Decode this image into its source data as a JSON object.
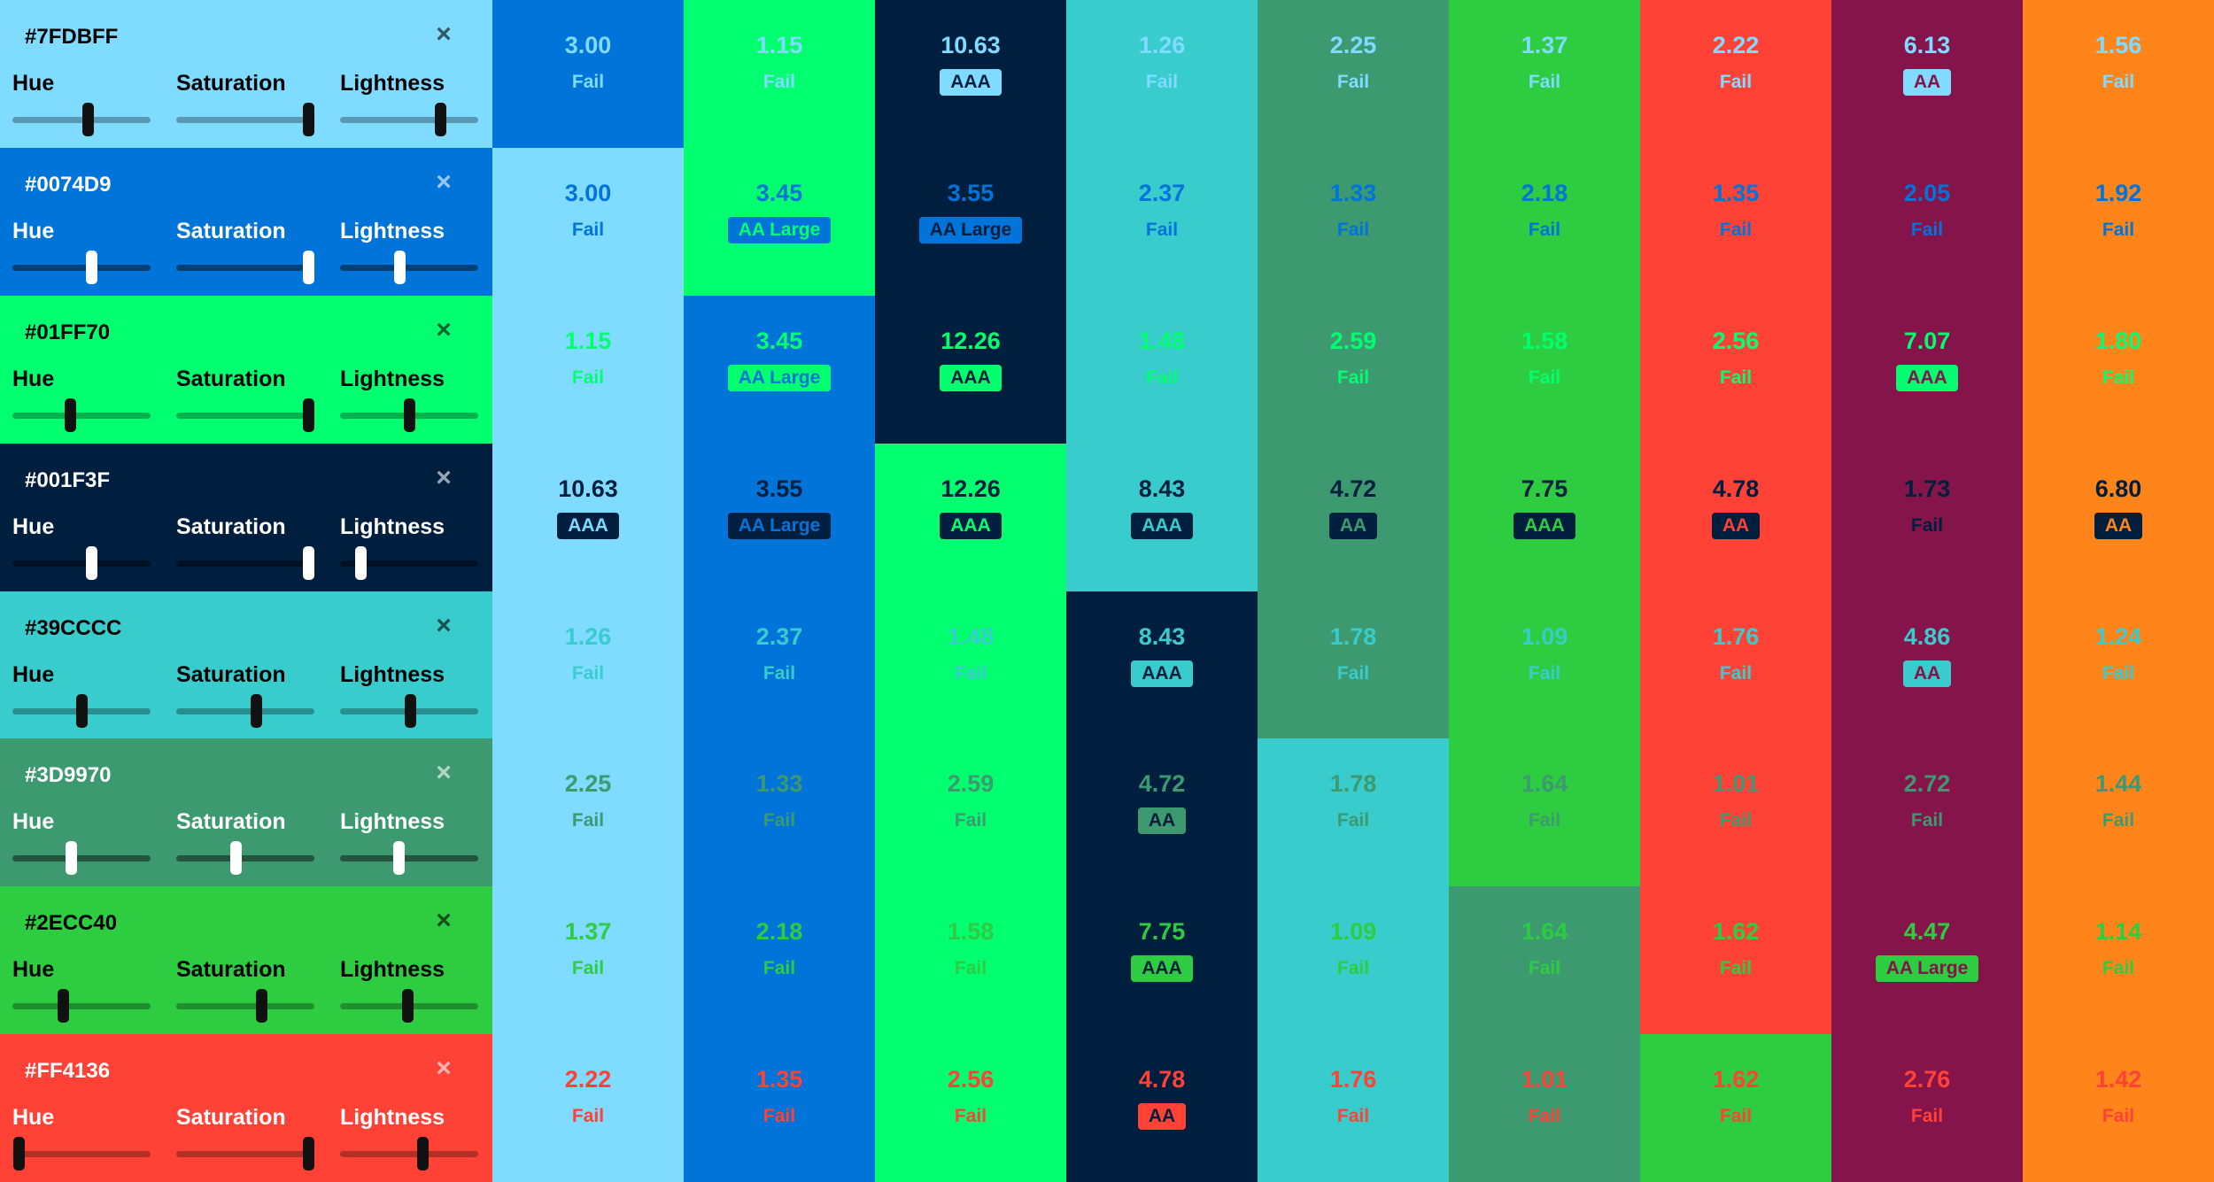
{
  "colors": [
    {
      "hex": "#7FDBFF",
      "label": "#7FDBFF",
      "hue": 0.55,
      "saturation": 1.0,
      "lightness": 0.75,
      "text": "#000000"
    },
    {
      "hex": "#0074D9",
      "label": "#0074D9",
      "hue": 0.58,
      "saturation": 1.0,
      "lightness": 0.43,
      "text": "#ffffff"
    },
    {
      "hex": "#01FF70",
      "label": "#01FF70",
      "hue": 0.41,
      "saturation": 1.0,
      "lightness": 0.5,
      "text": "#000000"
    },
    {
      "hex": "#001F3F",
      "label": "#001F3F",
      "hue": 0.58,
      "saturation": 1.0,
      "lightness": 0.12,
      "text": "#ffffff"
    },
    {
      "hex": "#39CCCC",
      "label": "#39CCCC",
      "hue": 0.5,
      "saturation": 0.59,
      "lightness": 0.51,
      "text": "#000000"
    },
    {
      "hex": "#3D9970",
      "label": "#3D9970",
      "hue": 0.42,
      "saturation": 0.43,
      "lightness": 0.42,
      "text": "#ffffff"
    },
    {
      "hex": "#2ECC40",
      "label": "#2ECC40",
      "hue": 0.36,
      "saturation": 0.63,
      "lightness": 0.49,
      "text": "#000000"
    },
    {
      "hex": "#FF4136",
      "label": "#FF4136",
      "hue": 0.01,
      "saturation": 1.0,
      "lightness": 0.61,
      "text": "#ffffff"
    }
  ],
  "column_colors": [
    "#7FDBFF",
    "#0074D9",
    "#01FF70",
    "#001F3F",
    "#39CCCC",
    "#3D9970",
    "#2ECC40",
    "#FF4136",
    "#85144B",
    "#FF851B"
  ],
  "slider_labels": {
    "hue": "Hue",
    "saturation": "Saturation",
    "lightness": "Lightness"
  },
  "close_label": "×",
  "matrix": [
    [
      [
        "3.00",
        "Fail"
      ],
      [
        "1.15",
        "Fail"
      ],
      [
        "10.63",
        "AAA"
      ],
      [
        "1.26",
        "Fail"
      ],
      [
        "2.25",
        "Fail"
      ],
      [
        "1.37",
        "Fail"
      ],
      [
        "2.22",
        "Fail"
      ],
      [
        "6.13",
        "AA"
      ],
      [
        "1.56",
        "Fail"
      ]
    ],
    [
      [
        "3.00",
        "Fail"
      ],
      [
        "3.45",
        "AA Large"
      ],
      [
        "3.55",
        "AA Large"
      ],
      [
        "2.37",
        "Fail"
      ],
      [
        "1.33",
        "Fail"
      ],
      [
        "2.18",
        "Fail"
      ],
      [
        "1.35",
        "Fail"
      ],
      [
        "2.05",
        "Fail"
      ],
      [
        "1.92",
        "Fail"
      ]
    ],
    [
      [
        "1.15",
        "Fail"
      ],
      [
        "3.45",
        "AA Large"
      ],
      [
        "12.26",
        "AAA"
      ],
      [
        "1.48",
        "Fail"
      ],
      [
        "2.59",
        "Fail"
      ],
      [
        "1.58",
        "Fail"
      ],
      [
        "2.56",
        "Fail"
      ],
      [
        "7.07",
        "AAA"
      ],
      [
        "1.80",
        "Fail"
      ]
    ],
    [
      [
        "10.63",
        "AAA"
      ],
      [
        "3.55",
        "AA Large"
      ],
      [
        "12.26",
        "AAA"
      ],
      [
        "8.43",
        "AAA"
      ],
      [
        "4.72",
        "AA"
      ],
      [
        "7.75",
        "AAA"
      ],
      [
        "4.78",
        "AA"
      ],
      [
        "1.73",
        "Fail"
      ],
      [
        "6.80",
        "AA"
      ]
    ],
    [
      [
        "1.26",
        "Fail"
      ],
      [
        "2.37",
        "Fail"
      ],
      [
        "1.48",
        "Fail"
      ],
      [
        "8.43",
        "AAA"
      ],
      [
        "1.78",
        "Fail"
      ],
      [
        "1.09",
        "Fail"
      ],
      [
        "1.76",
        "Fail"
      ],
      [
        "4.86",
        "AA"
      ],
      [
        "1.24",
        "Fail"
      ]
    ],
    [
      [
        "2.25",
        "Fail"
      ],
      [
        "1.33",
        "Fail"
      ],
      [
        "2.59",
        "Fail"
      ],
      [
        "4.72",
        "AA"
      ],
      [
        "1.78",
        "Fail"
      ],
      [
        "1.64",
        "Fail"
      ],
      [
        "1.01",
        "Fail"
      ],
      [
        "2.72",
        "Fail"
      ],
      [
        "1.44",
        "Fail"
      ]
    ],
    [
      [
        "1.37",
        "Fail"
      ],
      [
        "2.18",
        "Fail"
      ],
      [
        "1.58",
        "Fail"
      ],
      [
        "7.75",
        "AAA"
      ],
      [
        "1.09",
        "Fail"
      ],
      [
        "1.64",
        "Fail"
      ],
      [
        "1.62",
        "Fail"
      ],
      [
        "4.47",
        "AA Large"
      ],
      [
        "1.14",
        "Fail"
      ]
    ],
    [
      [
        "2.22",
        "Fail"
      ],
      [
        "1.35",
        "Fail"
      ],
      [
        "2.56",
        "Fail"
      ],
      [
        "4.78",
        "AA"
      ],
      [
        "1.76",
        "Fail"
      ],
      [
        "1.01",
        "Fail"
      ],
      [
        "1.62",
        "Fail"
      ],
      [
        "2.76",
        "Fail"
      ],
      [
        "1.42",
        "Fail"
      ]
    ]
  ]
}
